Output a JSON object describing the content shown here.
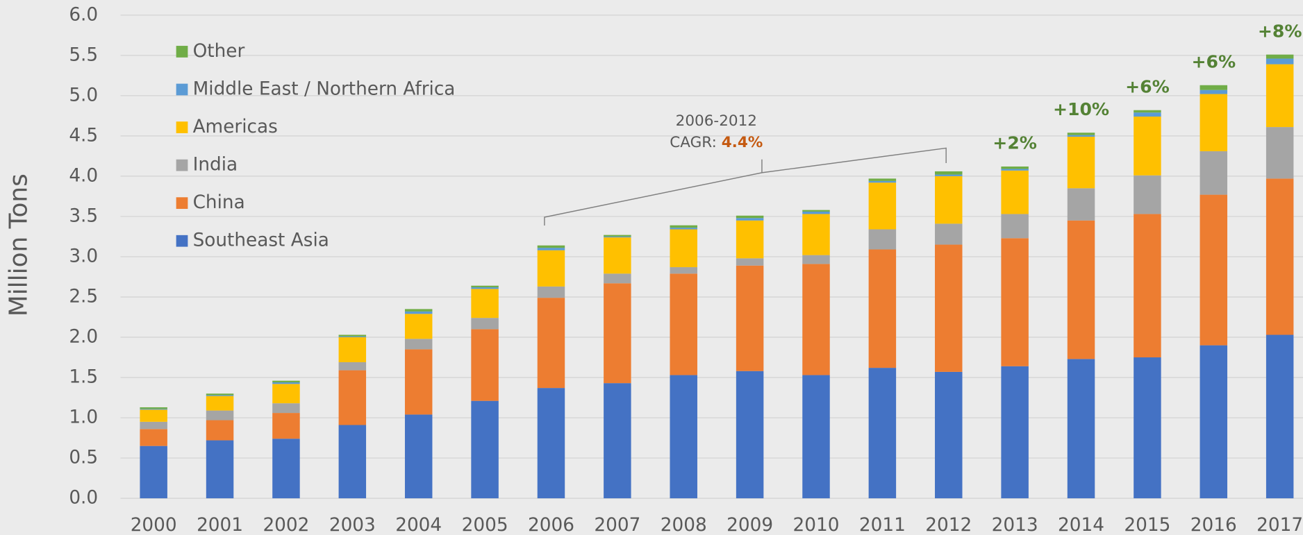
{
  "chart_data": {
    "type": "stacked_bar",
    "y_label": "Million Tons",
    "categories": [
      "2000",
      "2001",
      "2002",
      "2003",
      "2004",
      "2005",
      "2006",
      "2007",
      "2008",
      "2009",
      "2010",
      "2011",
      "2012",
      "2013",
      "2014",
      "2015",
      "2016",
      "2017"
    ],
    "series": [
      {
        "name": "Southeast Asia",
        "color": "#4472c4",
        "values": [
          0.65,
          0.72,
          0.74,
          0.91,
          1.04,
          1.21,
          1.37,
          1.43,
          1.53,
          1.58,
          1.53,
          1.62,
          1.57,
          1.64,
          1.73,
          1.75,
          1.9,
          2.03
        ]
      },
      {
        "name": "China",
        "color": "#ed7d31",
        "values": [
          0.21,
          0.25,
          0.32,
          0.68,
          0.81,
          0.89,
          1.12,
          1.24,
          1.26,
          1.31,
          1.38,
          1.47,
          1.58,
          1.59,
          1.72,
          1.78,
          1.87,
          1.94
        ]
      },
      {
        "name": "India",
        "color": "#a5a5a5",
        "values": [
          0.09,
          0.12,
          0.12,
          0.1,
          0.13,
          0.14,
          0.14,
          0.12,
          0.08,
          0.09,
          0.11,
          0.25,
          0.26,
          0.3,
          0.4,
          0.48,
          0.54,
          0.64
        ]
      },
      {
        "name": "Americas",
        "color": "#ffc000",
        "values": [
          0.15,
          0.18,
          0.24,
          0.31,
          0.31,
          0.36,
          0.45,
          0.45,
          0.47,
          0.47,
          0.51,
          0.58,
          0.59,
          0.54,
          0.64,
          0.73,
          0.71,
          0.78
        ]
      },
      {
        "name": "Middle East / Northern Africa",
        "color": "#5b9bd5",
        "values": [
          0.01,
          0.01,
          0.02,
          0.01,
          0.03,
          0.02,
          0.03,
          0.01,
          0.02,
          0.03,
          0.03,
          0.02,
          0.02,
          0.02,
          0.02,
          0.05,
          0.05,
          0.07
        ]
      },
      {
        "name": "Other",
        "color": "#70ad47",
        "values": [
          0.02,
          0.02,
          0.02,
          0.02,
          0.03,
          0.02,
          0.03,
          0.02,
          0.03,
          0.03,
          0.02,
          0.03,
          0.04,
          0.03,
          0.03,
          0.03,
          0.06,
          0.05
        ]
      }
    ],
    "growth_labels": [
      null,
      null,
      null,
      null,
      null,
      null,
      null,
      null,
      null,
      null,
      null,
      null,
      null,
      "+2%",
      "+10%",
      "+6%",
      "+6%",
      "+8%"
    ],
    "annotation": {
      "period": "2006-2012",
      "cagr_label": "CAGR:",
      "cagr_value": "4.4%"
    },
    "ylim": [
      0,
      6
    ],
    "yticks": [
      {
        "value": 0,
        "label": "0.0"
      },
      0.5,
      {
        "value": 1,
        "label": "1.0"
      },
      1.5,
      {
        "value": 2,
        "label": "2.0"
      },
      2.5,
      {
        "value": 3,
        "label": "3.0"
      },
      3.5,
      {
        "value": 4,
        "label": "4.0"
      },
      4.5,
      {
        "value": 5,
        "label": "5.0"
      },
      5.5,
      {
        "value": 6,
        "label": "6.0"
      }
    ],
    "grid": true,
    "legend": "top-left"
  }
}
